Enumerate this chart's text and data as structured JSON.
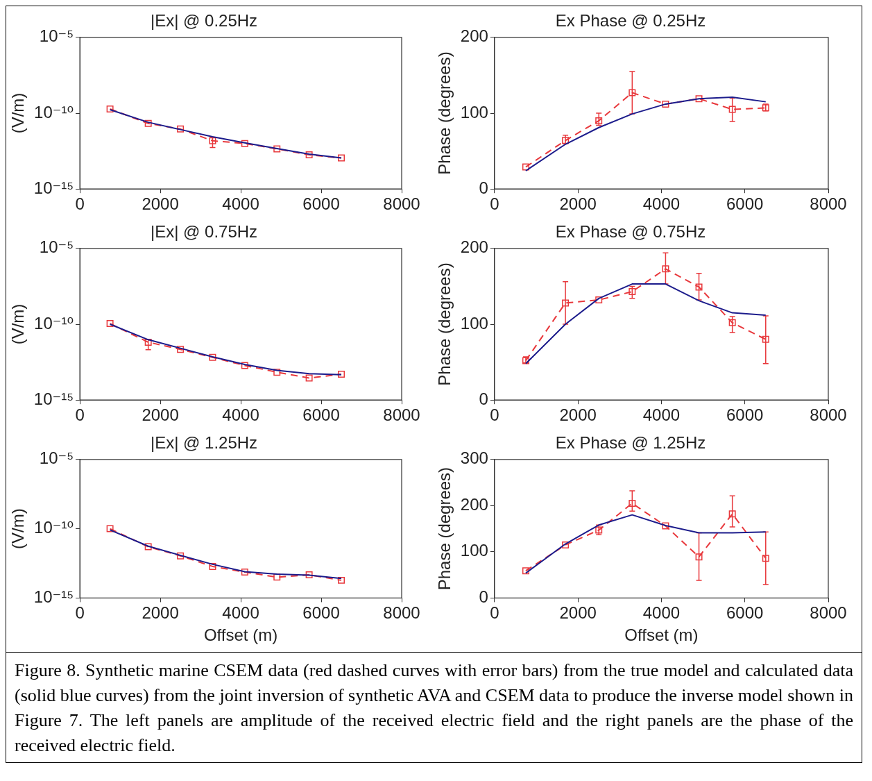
{
  "chart_data": [
    {
      "type": "line",
      "title": "|Ex| @ 0.25Hz",
      "ylabel": "(V/m)",
      "log": "y",
      "x": [
        750,
        1700,
        2500,
        3300,
        4100,
        4900,
        5700,
        6500
      ],
      "xlim": [
        0,
        8000
      ],
      "xticks": [
        0,
        2000,
        4000,
        6000,
        8000
      ],
      "ylim": [
        1e-15,
        1e-05
      ],
      "yticks": [
        {
          "value": 1e-15,
          "label": "10⁻¹⁵"
        },
        {
          "value": 1e-10,
          "label": "10⁻¹⁰"
        },
        {
          "value": 1e-05,
          "label": "10⁻⁵"
        }
      ],
      "series": [
        {
          "color": "#1c1c8c",
          "line_style": "solid",
          "marker": "none",
          "values": [
            1.7e-10,
            2.5e-11,
            8.3e-12,
            2.8e-12,
            1.1e-12,
            4.6e-13,
            2e-13,
            1.1e-13
          ]
        },
        {
          "color": "#e8383c",
          "line_style": "dashed",
          "marker": "square",
          "values": [
            1.9e-10,
            2.1e-11,
            9e-12,
            1.5e-12,
            1e-12,
            4.4e-13,
            1.8e-13,
            1.1e-13
          ],
          "errors": [
            null,
            null,
            null,
            [
              5.4e-13,
              2.5e-12
            ],
            null,
            null,
            null,
            null
          ]
        }
      ]
    },
    {
      "type": "line",
      "title": "Ex Phase @ 0.25Hz",
      "ylabel": "Phase (degrees)",
      "x": [
        750,
        1700,
        2500,
        3300,
        4100,
        4900,
        5700,
        6500
      ],
      "xlim": [
        0,
        8000
      ],
      "xticks": [
        0,
        2000,
        4000,
        6000,
        8000
      ],
      "ylim": [
        0,
        200
      ],
      "yticks": [
        0,
        100,
        200
      ],
      "series": [
        {
          "color": "#1c1c8c",
          "line_style": "solid",
          "marker": "none",
          "values": [
            24,
            59,
            81,
            99,
            112,
            119,
            121,
            115
          ]
        },
        {
          "color": "#e8383c",
          "line_style": "dashed",
          "marker": "square",
          "values": [
            29,
            64,
            90,
            127,
            112,
            119,
            105,
            107
          ],
          "errors": [
            null,
            [
              60,
              71
            ],
            [
              84,
              100
            ],
            [
              99,
              155
            ],
            null,
            null,
            [
              89,
              120
            ],
            [
              103,
              112
            ]
          ]
        }
      ]
    },
    {
      "type": "line",
      "title": "|Ex| @ 0.75Hz",
      "ylabel": "(V/m)",
      "log": "y",
      "x": [
        750,
        1700,
        2500,
        3300,
        4100,
        4900,
        5700,
        6500
      ],
      "xlim": [
        0,
        8000
      ],
      "xticks": [
        0,
        2000,
        4000,
        6000,
        8000
      ],
      "ylim": [
        1e-15,
        1e-05
      ],
      "yticks": [
        {
          "value": 1e-15,
          "label": "10⁻¹⁵"
        },
        {
          "value": 1e-10,
          "label": "10⁻¹⁰"
        },
        {
          "value": 1e-05,
          "label": "10⁻⁵"
        }
      ],
      "series": [
        {
          "color": "#1c1c8c",
          "line_style": "solid",
          "marker": "none",
          "values": [
            1e-10,
            9.5e-12,
            2.6e-12,
            7e-13,
            2.2e-13,
            9e-14,
            5.5e-14,
            4.7e-14
          ]
        },
        {
          "color": "#e8383c",
          "line_style": "dashed",
          "marker": "square",
          "values": [
            1.1e-10,
            6.5e-12,
            2.2e-12,
            6.5e-13,
            1.9e-13,
            6.8e-14,
            2.8e-14,
            5.1e-14
          ],
          "errors": [
            null,
            [
              2.1e-12,
              9.5e-12
            ],
            null,
            null,
            null,
            null,
            null,
            null
          ]
        }
      ]
    },
    {
      "type": "line",
      "title": "Ex Phase @ 0.75Hz",
      "ylabel": "Phase (degrees)",
      "x": [
        750,
        1700,
        2500,
        3300,
        4100,
        4900,
        5700,
        6500
      ],
      "xlim": [
        0,
        8000
      ],
      "xticks": [
        0,
        2000,
        4000,
        6000,
        8000
      ],
      "ylim": [
        0,
        200
      ],
      "yticks": [
        0,
        100,
        200
      ],
      "series": [
        {
          "color": "#1c1c8c",
          "line_style": "solid",
          "marker": "none",
          "values": [
            48,
            100,
            134,
            153,
            153,
            131,
            115,
            112
          ]
        },
        {
          "color": "#e8383c",
          "line_style": "dashed",
          "marker": "square",
          "values": [
            52,
            128,
            132,
            143,
            173,
            149,
            102,
            80
          ],
          "errors": [
            [
              49,
              57
            ],
            [
              100,
              156
            ],
            null,
            [
              134,
              150
            ],
            [
              153,
              194
            ],
            [
              132,
              167
            ],
            [
              89,
              110
            ],
            [
              48,
              111
            ]
          ]
        }
      ]
    },
    {
      "type": "line",
      "title": "|Ex| @ 1.25Hz",
      "xlabel": "Offset (m)",
      "ylabel": "(V/m)",
      "log": "y",
      "x": [
        750,
        1700,
        2500,
        3300,
        4100,
        4900,
        5700,
        6500
      ],
      "xlim": [
        0,
        8000
      ],
      "xticks": [
        0,
        2000,
        4000,
        6000,
        8000
      ],
      "ylim": [
        1e-15,
        1e-05
      ],
      "yticks": [
        {
          "value": 1e-15,
          "label": "10⁻¹⁵"
        },
        {
          "value": 1e-10,
          "label": "10⁻¹⁰"
        },
        {
          "value": 1e-05,
          "label": "10⁻⁵"
        }
      ],
      "series": [
        {
          "color": "#1c1c8c",
          "line_style": "solid",
          "marker": "none",
          "values": [
            8.2e-11,
            5.5e-12,
            1.2e-12,
            2.7e-13,
            8e-14,
            5.3e-14,
            4.4e-14,
            2.6e-14
          ]
        },
        {
          "color": "#e8383c",
          "line_style": "dashed",
          "marker": "square",
          "values": [
            1e-10,
            5e-12,
            1.1e-12,
            1.9e-13,
            7.4e-14,
            3.2e-14,
            4.7e-14,
            1.9e-14
          ]
        }
      ]
    },
    {
      "type": "line",
      "title": "Ex Phase @ 1.25Hz",
      "xlabel": "Offset (m)",
      "ylabel": "Phase (degrees)",
      "x": [
        750,
        1700,
        2500,
        3300,
        4100,
        4900,
        5700,
        6500
      ],
      "xlim": [
        0,
        8000
      ],
      "xticks": [
        0,
        2000,
        4000,
        6000,
        8000
      ],
      "ylim": [
        0,
        300
      ],
      "yticks": [
        0,
        100,
        200,
        300
      ],
      "series": [
        {
          "color": "#1c1c8c",
          "line_style": "solid",
          "marker": "none",
          "values": [
            54,
            117,
            158,
            180,
            157,
            141,
            141,
            143
          ]
        },
        {
          "color": "#e8383c",
          "line_style": "dashed",
          "marker": "square",
          "values": [
            59,
            115,
            147,
            205,
            156,
            89,
            182,
            86
          ],
          "errors": [
            null,
            null,
            [
              137,
              158
            ],
            [
              188,
              232
            ],
            null,
            [
              38,
              141
            ],
            [
              154,
              221
            ],
            [
              29,
              143
            ]
          ]
        }
      ],
      "annotations": [
        "Figure 8.  Synthetic marine CSEM data (red dashed curves with error bars) from the true model and calculated data (solid blue curves) from the joint inversion of synthetic AVA and CSEM data to produce the inverse model shown in Figure 7.  The left panels are amplitude of the received electric field and the right panels are the phase of the received electric field."
      ]
    }
  ]
}
